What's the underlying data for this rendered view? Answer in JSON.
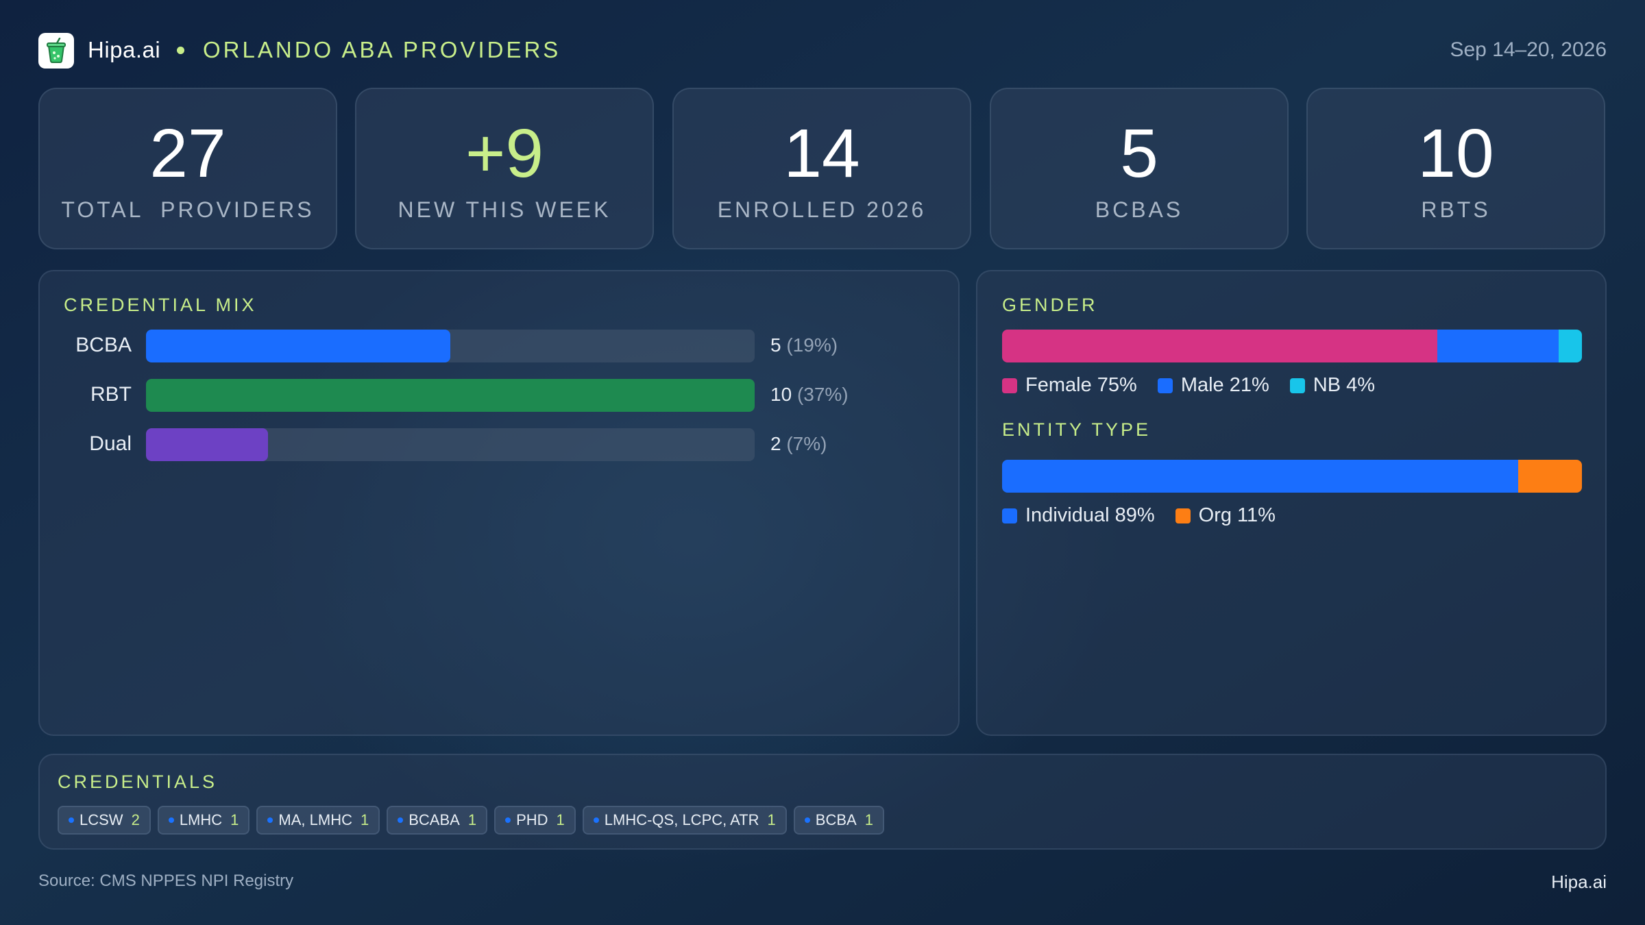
{
  "header": {
    "brand": "Hipa.ai",
    "title": "ORLANDO ABA PROVIDERS",
    "date_range": "Sep 14–20, 2026",
    "accent_color": "#c8ee8a"
  },
  "stats": [
    {
      "value": "27",
      "label": "TOTAL  PROVIDERS"
    },
    {
      "value": "+9",
      "label": "NEW THIS WEEK"
    },
    {
      "value": "14",
      "label": "ENROLLED 2026"
    },
    {
      "value": "5",
      "label": "BCBAS"
    },
    {
      "value": "10",
      "label": "RBTS"
    }
  ],
  "credential_mix": {
    "title": "CREDENTIAL MIX",
    "rows": [
      {
        "label": "BCBA",
        "value": "5",
        "pct": "(19%)",
        "fraction": 0.5,
        "color": "#1a6dff"
      },
      {
        "label": "RBT",
        "value": "10",
        "pct": "(37%)",
        "fraction": 1.0,
        "color": "#1e8a50"
      },
      {
        "label": "Dual",
        "value": "2",
        "pct": "(7%)",
        "fraction": 0.2,
        "color": "#6d41c4"
      }
    ]
  },
  "gender": {
    "title": "GENDER",
    "segments": [
      {
        "label": "Female 75%",
        "fraction": 0.75,
        "color": "#d63384"
      },
      {
        "label": "Male 21%",
        "fraction": 0.21,
        "color": "#1a6dff"
      },
      {
        "label": "NB 4%",
        "fraction": 0.04,
        "color": "#18c5ea"
      }
    ]
  },
  "entity_type": {
    "title": "ENTITY TYPE",
    "segments": [
      {
        "label": "Individual 89%",
        "fraction": 0.89,
        "color": "#1a6dff"
      },
      {
        "label": "Org 11%",
        "fraction": 0.11,
        "color": "#fd7e14"
      }
    ]
  },
  "credentials": {
    "title": "CREDENTIALS",
    "chips": [
      {
        "label": "LCSW",
        "count": "2"
      },
      {
        "label": "LMHC",
        "count": "1"
      },
      {
        "label": "MA, LMHC",
        "count": "1"
      },
      {
        "label": "BCABA",
        "count": "1"
      },
      {
        "label": "PHD",
        "count": "1"
      },
      {
        "label": "LMHC-QS, LCPC, ATR",
        "count": "1"
      },
      {
        "label": "BCBA",
        "count": "1"
      }
    ]
  },
  "footer": {
    "source": "Source: CMS NPPES NPI Registry",
    "brand": "Hipa.ai"
  },
  "icons": {
    "logo": "drink-cup-icon"
  }
}
